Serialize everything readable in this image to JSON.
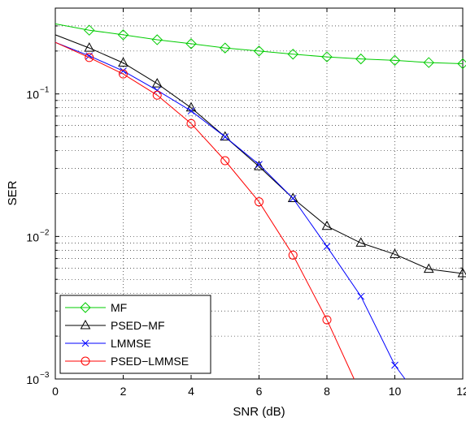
{
  "chart_data": {
    "type": "line",
    "title": "",
    "xlabel": "SNR (dB)",
    "ylabel": "SER",
    "xlim": [
      0,
      12
    ],
    "ylim": [
      0.001,
      0.4
    ],
    "yscale": "log",
    "grid": true,
    "legend_position": "bottom-left",
    "x_ticks": [
      0,
      2,
      4,
      6,
      8,
      10,
      12
    ],
    "x_tick_labels": [
      "0",
      "2",
      "4",
      "6",
      "8",
      "10",
      "12"
    ],
    "y_ticks": [
      0.001,
      0.01,
      0.1
    ],
    "y_tick_labels": [
      {
        "base": "10",
        "exp": "−3"
      },
      {
        "base": "10",
        "exp": "−2"
      },
      {
        "base": "10",
        "exp": "−1"
      }
    ],
    "series": [
      {
        "name": "MF",
        "color": "#00cc00",
        "marker": "diamond",
        "x": [
          0,
          1,
          2,
          3,
          4,
          5,
          6,
          7,
          8,
          9,
          10,
          11,
          12
        ],
        "y": [
          0.31,
          0.28,
          0.26,
          0.24,
          0.225,
          0.21,
          0.2,
          0.19,
          0.182,
          0.176,
          0.172,
          0.166,
          0.163
        ],
        "marker_x": [
          1,
          2,
          3,
          4,
          5,
          6,
          7,
          8,
          9,
          10,
          11,
          12
        ]
      },
      {
        "name": "PSED−MF",
        "color": "#000000",
        "marker": "triangle",
        "x": [
          0,
          1,
          2,
          3,
          4,
          5,
          6,
          7,
          8,
          9,
          10,
          11,
          12
        ],
        "y": [
          0.26,
          0.21,
          0.165,
          0.118,
          0.08,
          0.05,
          0.031,
          0.0185,
          0.0118,
          0.009,
          0.0075,
          0.0059,
          0.0055
        ],
        "marker_x": [
          1,
          2,
          3,
          4,
          5,
          6,
          7,
          8,
          9,
          10,
          11,
          12
        ]
      },
      {
        "name": "LMMSE",
        "color": "#0000ff",
        "marker": "x",
        "x": [
          0,
          1,
          2,
          3,
          4,
          5,
          6,
          7,
          8,
          9,
          10,
          10.3
        ],
        "y": [
          0.23,
          0.185,
          0.145,
          0.106,
          0.076,
          0.05,
          0.032,
          0.0185,
          0.0085,
          0.0038,
          0.00125,
          0.001
        ],
        "marker_x": [
          1,
          2,
          3,
          4,
          5,
          6,
          7,
          8,
          9,
          10
        ]
      },
      {
        "name": "PSED−LMMSE",
        "color": "#ff0000",
        "marker": "circle",
        "x": [
          0,
          1,
          2,
          3,
          4,
          5,
          6,
          7,
          8,
          8.8
        ],
        "y": [
          0.23,
          0.18,
          0.138,
          0.098,
          0.062,
          0.034,
          0.0175,
          0.0074,
          0.0026,
          0.001
        ],
        "marker_x": [
          1,
          2,
          3,
          4,
          5,
          6,
          7,
          8
        ]
      }
    ]
  }
}
